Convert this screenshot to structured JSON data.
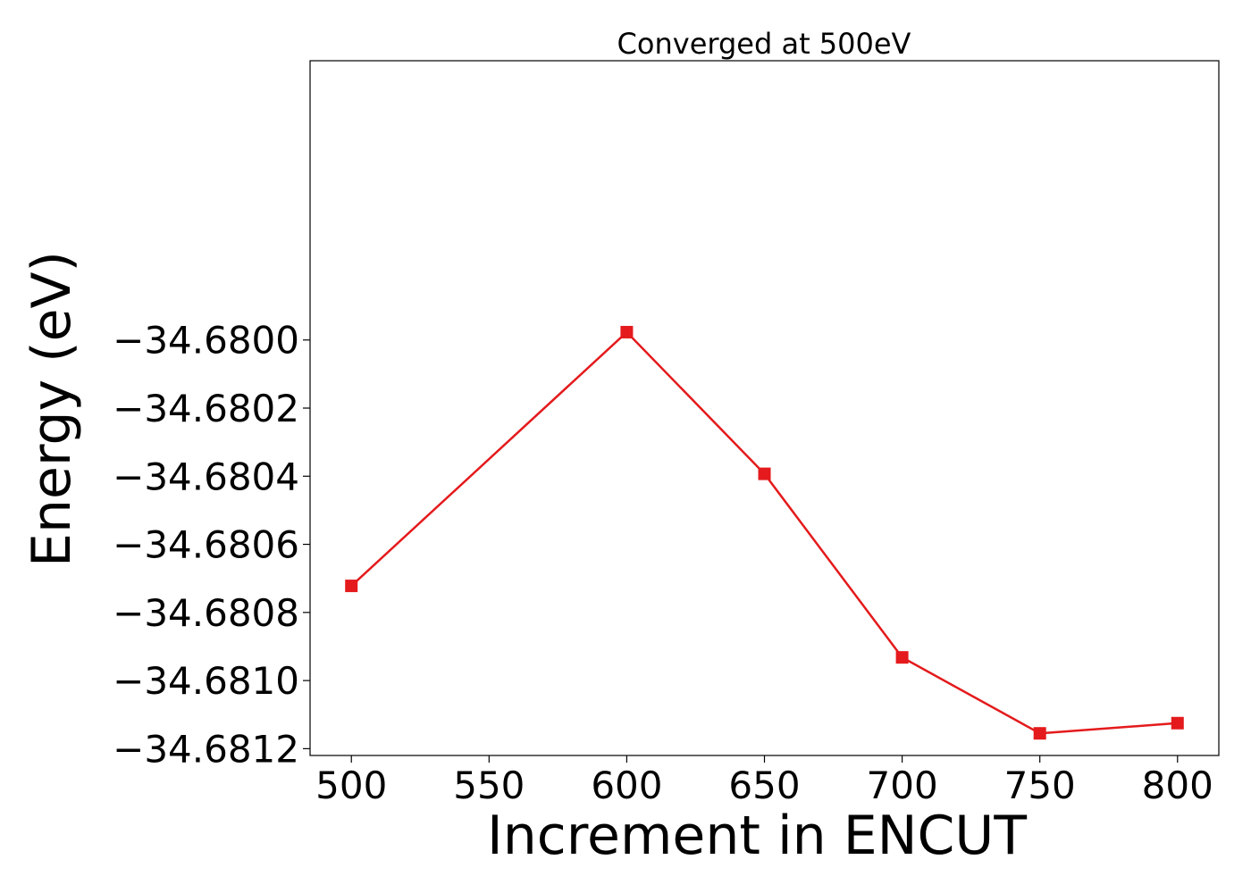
{
  "chart_data": {
    "type": "line",
    "title": "Converged at 500eV",
    "xlabel": "Increment in ENCUT",
    "ylabel": "Energy (eV)",
    "xlim": [
      485,
      815
    ],
    "ylim": [
      -34.68122,
      -34.67918
    ],
    "x_ticks": [
      500,
      550,
      600,
      650,
      700,
      750,
      800
    ],
    "x_tick_labels": [
      "500",
      "550",
      "600",
      "650",
      "700",
      "750",
      "800"
    ],
    "y_ticks": [
      -34.68,
      -34.6802,
      -34.6804,
      -34.6806,
      -34.6808,
      -34.681,
      -34.6812
    ],
    "y_tick_labels": [
      "−34.6800",
      "−34.6802",
      "−34.6804",
      "−34.6806",
      "−34.6808",
      "−34.6810",
      "−34.6812"
    ],
    "grid": false,
    "series": [
      {
        "x": [
          500,
          600,
          650,
          700,
          750,
          800
        ],
        "y": [
          -34.680722,
          -34.679977,
          -34.680393,
          -34.680932,
          -34.681155,
          -34.681125
        ],
        "color": "#e41a1c",
        "marker": "square"
      }
    ]
  }
}
